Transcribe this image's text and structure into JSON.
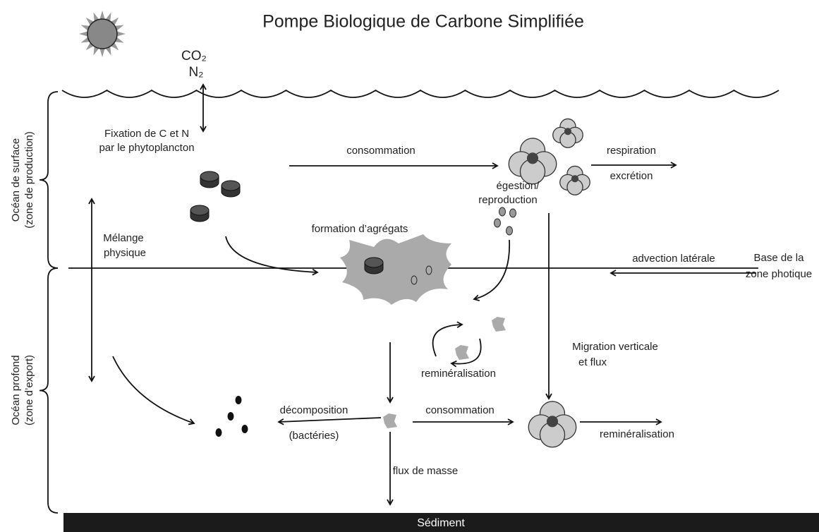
{
  "title": "Pompe Biologique de Carbone Simplifiée",
  "gases": [
    "CO₂",
    "N₂"
  ],
  "zones": {
    "surface": [
      "Océan de surface",
      "(zone de production)"
    ],
    "deep": [
      "Océan profond",
      "(zone d’export)"
    ]
  },
  "fixation": [
    "Fixation de C et N",
    "par le phytoplancton"
  ],
  "consumption_top": "consommation",
  "respiration": "respiration",
  "excretion": "excrétion",
  "egestion": [
    "égestion/",
    "reproduction"
  ],
  "aggregates": "formation d’agrégats",
  "mixing": [
    "Mélange",
    "physique"
  ],
  "advection": "advection latérale",
  "photic_base": [
    "Base de la",
    "zone photique"
  ],
  "migration": [
    "Migration verticale",
    "et flux"
  ],
  "remineralisation_mid": "reminéralisation",
  "decomposition": [
    "décomposition",
    "(bactéries)"
  ],
  "consumption_bottom": "consommation",
  "remineralisation_bottom": "reminéralisation",
  "mass_flux": "flux de masse",
  "sediment": "Sédiment"
}
